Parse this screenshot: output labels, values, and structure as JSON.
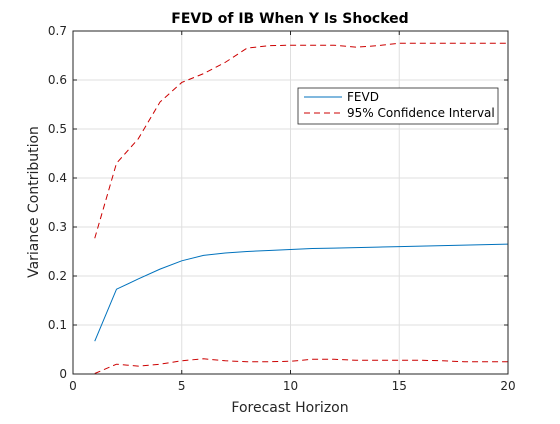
{
  "chart_data": {
    "type": "line",
    "title": "FEVD of IB When Y Is Shocked",
    "xlabel": "Forecast Horizon",
    "ylabel": "Variance Contribution",
    "xlim": [
      0,
      20
    ],
    "ylim": [
      0,
      0.7
    ],
    "xticks": [
      0,
      5,
      10,
      15,
      20
    ],
    "yticks": [
      0,
      0.1,
      0.2,
      0.3,
      0.4,
      0.5,
      0.6,
      0.7
    ],
    "xtick_labels": [
      "0",
      "5",
      "10",
      "15",
      "20"
    ],
    "ytick_labels": [
      "0",
      "0.1",
      "0.2",
      "0.3",
      "0.4",
      "0.5",
      "0.6",
      "0.7"
    ],
    "grid": true,
    "legend_position": "upper-right",
    "x": [
      1,
      2,
      3,
      4,
      5,
      6,
      7,
      8,
      9,
      10,
      11,
      12,
      13,
      14,
      15,
      16,
      17,
      18,
      19,
      20
    ],
    "series": [
      {
        "name": "FEVD",
        "style": "solid",
        "color": "#0072BD",
        "values": [
          0.067,
          0.173,
          0.194,
          0.214,
          0.231,
          0.242,
          0.247,
          0.25,
          0.252,
          0.254,
          0.256,
          0.257,
          0.258,
          0.259,
          0.26,
          0.261,
          0.262,
          0.263,
          0.264,
          0.265
        ]
      },
      {
        "name": "95% Confidence Interval",
        "style": "dashed",
        "color": "#D95319",
        "upper": [
          0.277,
          0.43,
          0.48,
          0.555,
          0.595,
          0.613,
          0.636,
          0.665,
          0.67,
          0.671,
          0.671,
          0.671,
          0.667,
          0.67,
          0.675,
          0.675,
          0.675,
          0.675,
          0.675,
          0.675
        ],
        "lower": [
          0.001,
          0.02,
          0.016,
          0.02,
          0.027,
          0.031,
          0.027,
          0.025,
          0.025,
          0.026,
          0.03,
          0.03,
          0.028,
          0.028,
          0.028,
          0.028,
          0.027,
          0.025,
          0.025,
          0.025
        ]
      }
    ]
  }
}
